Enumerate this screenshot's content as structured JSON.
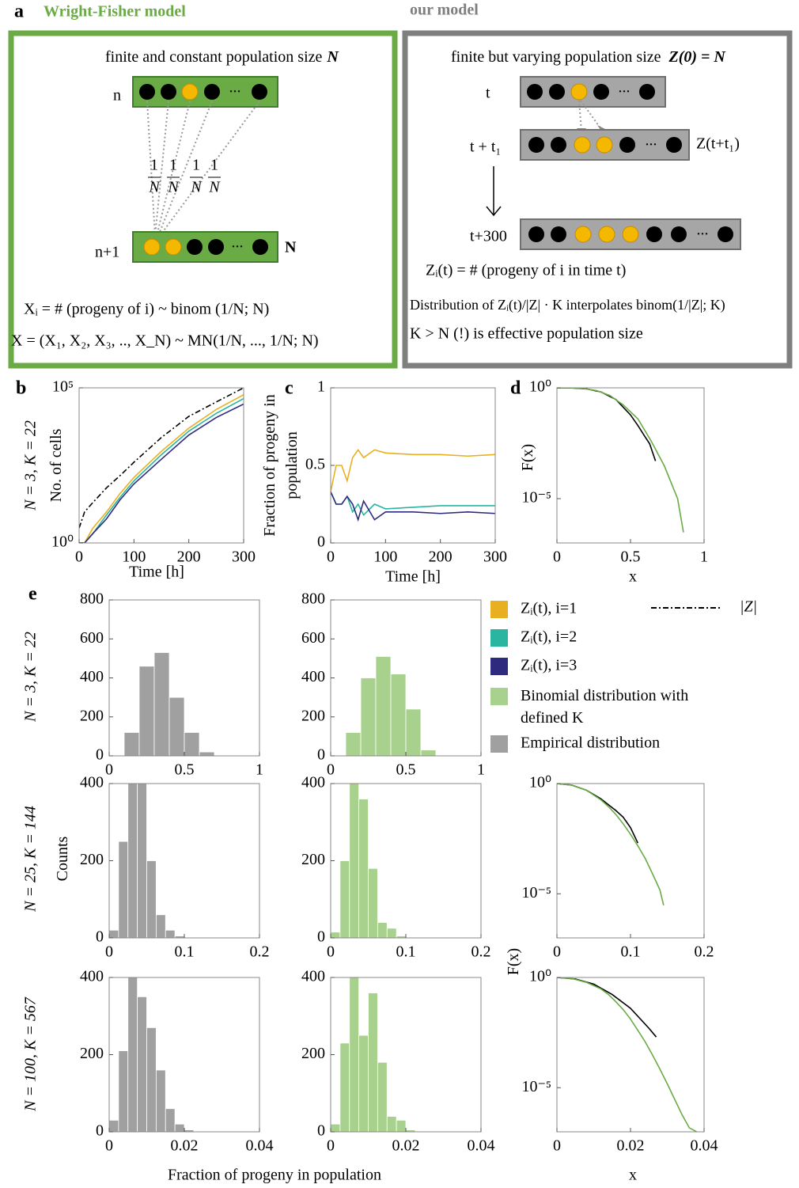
{
  "panels": [
    "a",
    "b",
    "c",
    "d",
    "e"
  ],
  "diagram": {
    "wf_title": "Wright-Fisher model",
    "our_title": "our model",
    "wf_pop": "finite and constant population size",
    "wf_pop_var": "N",
    "row_n": "n",
    "row_n1": "n+1",
    "row_n1_size": "N",
    "ellipsis": "...",
    "frac_num": "1",
    "frac_den": "N",
    "wf_formula1": "Xᵢ = # (progeny of i) ~ binom (1/N; N)",
    "wf_formula2": "X = (X₁, X₂, X₃, .., X_N) ~ MN(1/N, ..., 1/N; N)",
    "our_pop": "finite but varying population size",
    "our_pop_var": "Z(0) = N",
    "t0": "t",
    "t1": "t + t₁",
    "z_label": "Z(t+t₁)",
    "t300": "t+300",
    "our_formula1": "Zᵢ(t) = # (progeny of i in time t)",
    "our_formula2": "Distribution of Zᵢ(t)/|Z| · K interpolates binom(1/|Z|; K)",
    "our_formula3": "K > N (!) is effective population size"
  },
  "chart_data": [
    {
      "type": "line",
      "row_label": "N = 3, K = 22",
      "ylabel": "No. of cells",
      "xlabel": "Time [h]",
      "log_y": true,
      "x": [
        0,
        10,
        25,
        50,
        75,
        100,
        150,
        200,
        250,
        300
      ],
      "xlim": [
        0,
        300
      ],
      "xticks": [
        0,
        100,
        200,
        300
      ],
      "ylim": [
        1,
        100000
      ],
      "yticks": [
        {
          "value": 1,
          "label": "10⁰"
        },
        {
          "value": 100000,
          "label": "10⁵"
        }
      ],
      "series": [
        {
          "name": "|Z|",
          "color": "#000000",
          "linestyle": "dashdot",
          "values": [
            3,
            10,
            20,
            60,
            150,
            400,
            2500,
            12000,
            35000,
            100000
          ]
        },
        {
          "color": "#e8b020",
          "values": [
            1,
            1,
            3,
            10,
            40,
            130,
            900,
            5000,
            20000,
            60000
          ]
        },
        {
          "color": "#2ab5a0",
          "values": [
            1,
            1,
            2,
            8,
            30,
            100,
            700,
            4000,
            15000,
            45000
          ]
        },
        {
          "color": "#2e2a7e",
          "values": [
            1,
            1,
            2,
            6,
            25,
            80,
            500,
            3000,
            11000,
            30000
          ]
        }
      ]
    },
    {
      "type": "line",
      "ylabel": "Fraction of progeny in population",
      "xlabel": "Time [h]",
      "x": [
        0,
        10,
        20,
        30,
        40,
        50,
        60,
        80,
        100,
        150,
        200,
        250,
        300
      ],
      "xlim": [
        0,
        300
      ],
      "xticks": [
        0,
        100,
        200,
        300
      ],
      "ylim": [
        0,
        1
      ],
      "yticks": [
        0,
        0.5,
        1
      ],
      "series": [
        {
          "name": "Zᵢ(t), i=1",
          "color": "#e8b020",
          "values": [
            0.33,
            0.5,
            0.5,
            0.4,
            0.55,
            0.6,
            0.55,
            0.6,
            0.58,
            0.57,
            0.57,
            0.56,
            0.57
          ]
        },
        {
          "name": "Zᵢ(t), i=2",
          "color": "#2ab5a0",
          "values": [
            0.33,
            0.25,
            0.25,
            0.3,
            0.2,
            0.25,
            0.18,
            0.25,
            0.22,
            0.23,
            0.24,
            0.24,
            0.24
          ]
        },
        {
          "name": "Zᵢ(t), i=3",
          "color": "#2e2a7e",
          "values": [
            0.33,
            0.25,
            0.25,
            0.3,
            0.25,
            0.15,
            0.27,
            0.15,
            0.2,
            0.2,
            0.19,
            0.2,
            0.19
          ]
        }
      ]
    },
    {
      "type": "line",
      "ylabel": "F(x)",
      "xlabel": "x",
      "log_y": true,
      "xlim": [
        0,
        1
      ],
      "xticks": [
        0,
        0.5,
        1
      ],
      "ylim": [
        1e-07,
        1
      ],
      "yticks": [
        {
          "value": 1,
          "label": "10⁰"
        },
        {
          "value": 1e-05,
          "label": "10⁻⁵"
        }
      ],
      "series": [
        {
          "name": "Empirical distribution",
          "color": "#000000",
          "x": [
            0,
            0.1,
            0.2,
            0.3,
            0.4,
            0.5,
            0.55,
            0.6,
            0.63,
            0.67
          ],
          "values": [
            1,
            0.98,
            0.9,
            0.65,
            0.3,
            0.06,
            0.02,
            0.006,
            0.003,
            0.0005
          ]
        },
        {
          "name": "Binomial distribution with defined K",
          "color": "#6aab45",
          "x": [
            0,
            0.09,
            0.18,
            0.27,
            0.36,
            0.45,
            0.55,
            0.64,
            0.73,
            0.82,
            0.86
          ],
          "values": [
            1,
            0.99,
            0.93,
            0.75,
            0.45,
            0.17,
            0.04,
            0.004,
            0.0003,
            1e-05,
            3e-07
          ]
        }
      ]
    },
    {
      "type": "histogram",
      "row_label": "N = 3, K = 22",
      "color": "#a0a0a0",
      "bins": [
        0.1,
        0.2,
        0.3,
        0.4,
        0.5,
        0.6,
        0.7
      ],
      "values": [
        120,
        460,
        530,
        300,
        120,
        20
      ],
      "xlim": [
        0,
        1
      ],
      "xticks": [
        0,
        0.5,
        1
      ],
      "ylim": [
        0,
        800
      ],
      "yticks": [
        0,
        200,
        400,
        600,
        800
      ]
    },
    {
      "type": "histogram",
      "color": "#a9d18e",
      "bins": [
        0.1,
        0.2,
        0.3,
        0.4,
        0.5,
        0.6,
        0.7
      ],
      "values": [
        120,
        400,
        510,
        420,
        240,
        30
      ],
      "xlim": [
        0,
        1
      ],
      "xticks": [
        0,
        0.5,
        1
      ],
      "ylim": [
        0,
        800
      ],
      "yticks": [
        0,
        200,
        400,
        600,
        800
      ]
    },
    {
      "type": "histogram",
      "row_label": "N = 25, K = 144",
      "ylabel": "Counts",
      "color": "#a0a0a0",
      "bins": [
        0,
        0.0125,
        0.025,
        0.0375,
        0.05,
        0.0625,
        0.075,
        0.0875,
        0.1
      ],
      "values": [
        20,
        250,
        450,
        450,
        200,
        60,
        20,
        5
      ],
      "xlim": [
        0,
        0.2
      ],
      "xticks": [
        0,
        0.1,
        0.2
      ],
      "ylim": [
        0,
        400
      ],
      "yticks": [
        0,
        200,
        400
      ]
    },
    {
      "type": "histogram",
      "color": "#a9d18e",
      "bins": [
        0,
        0.0125,
        0.025,
        0.0375,
        0.05,
        0.0625,
        0.075,
        0.0875,
        0.1
      ],
      "values": [
        15,
        200,
        480,
        360,
        180,
        40,
        25,
        5
      ],
      "xlim": [
        0,
        0.2
      ],
      "xticks": [
        0,
        0.1,
        0.2
      ],
      "ylim": [
        0,
        400
      ],
      "yticks": [
        0,
        200,
        400
      ]
    },
    {
      "type": "line",
      "ylabel": "F(x)",
      "log_y": true,
      "xlim": [
        0,
        0.2
      ],
      "xticks": [
        0,
        0.1,
        0.2
      ],
      "ylim": [
        1e-07,
        1
      ],
      "yticks": [
        {
          "value": 1,
          "label": "10⁰"
        },
        {
          "value": 1e-05,
          "label": "10⁻⁵"
        }
      ],
      "series": [
        {
          "color": "#000000",
          "x": [
            0,
            0.02,
            0.04,
            0.06,
            0.08,
            0.09,
            0.1,
            0.11
          ],
          "values": [
            1,
            0.85,
            0.5,
            0.2,
            0.06,
            0.03,
            0.01,
            0.002
          ]
        },
        {
          "color": "#6aab45",
          "x": [
            0,
            0.02,
            0.04,
            0.06,
            0.07,
            0.08,
            0.09,
            0.1,
            0.11,
            0.12,
            0.13,
            0.14,
            0.145
          ],
          "values": [
            1,
            0.85,
            0.5,
            0.18,
            0.09,
            0.04,
            0.015,
            0.005,
            0.0015,
            0.0004,
            8e-05,
            1.5e-05,
            3e-06
          ]
        }
      ]
    },
    {
      "type": "histogram",
      "row_label": "N = 100, K = 567",
      "xlabel": "Fraction of progeny in population",
      "color": "#a0a0a0",
      "bins": [
        0,
        0.0025,
        0.005,
        0.0075,
        0.01,
        0.0125,
        0.015,
        0.0175,
        0.02,
        0.0225
      ],
      "values": [
        30,
        210,
        400,
        350,
        270,
        160,
        60,
        20,
        5
      ],
      "xlim": [
        0,
        0.04
      ],
      "xticks": [
        0,
        0.02,
        0.04
      ],
      "ylim": [
        0,
        400
      ],
      "yticks": [
        0,
        200,
        400
      ]
    },
    {
      "type": "histogram",
      "color": "#a9d18e",
      "bins": [
        0,
        0.0025,
        0.005,
        0.0075,
        0.01,
        0.0125,
        0.015,
        0.0175,
        0.02,
        0.0225
      ],
      "values": [
        20,
        230,
        400,
        250,
        360,
        180,
        40,
        30,
        5
      ],
      "xlim": [
        0,
        0.04
      ],
      "xticks": [
        0,
        0.02,
        0.04
      ],
      "ylim": [
        0,
        400
      ],
      "yticks": [
        0,
        200,
        400
      ]
    },
    {
      "type": "line",
      "xlabel": "x",
      "log_y": true,
      "xlim": [
        0,
        0.04
      ],
      "xticks": [
        0,
        0.02,
        0.04
      ],
      "ylim": [
        1e-07,
        1
      ],
      "yticks": [
        {
          "value": 1,
          "label": "10⁰"
        },
        {
          "value": 1e-05,
          "label": "10⁻⁵"
        }
      ],
      "series": [
        {
          "color": "#000000",
          "x": [
            0,
            0.005,
            0.01,
            0.015,
            0.02,
            0.025,
            0.027
          ],
          "values": [
            1,
            0.85,
            0.5,
            0.17,
            0.04,
            0.005,
            0.002
          ]
        },
        {
          "color": "#6aab45",
          "x": [
            0,
            0.004,
            0.008,
            0.012,
            0.014,
            0.016,
            0.018,
            0.02,
            0.022,
            0.024,
            0.026,
            0.028,
            0.03,
            0.032,
            0.034,
            0.036,
            0.038
          ],
          "values": [
            1,
            0.9,
            0.6,
            0.3,
            0.17,
            0.08,
            0.035,
            0.013,
            0.004,
            0.0012,
            0.0003,
            7e-05,
            1.5e-05,
            3e-06,
            6e-07,
            1.5e-07,
            1e-07
          ]
        }
      ]
    }
  ]
}
